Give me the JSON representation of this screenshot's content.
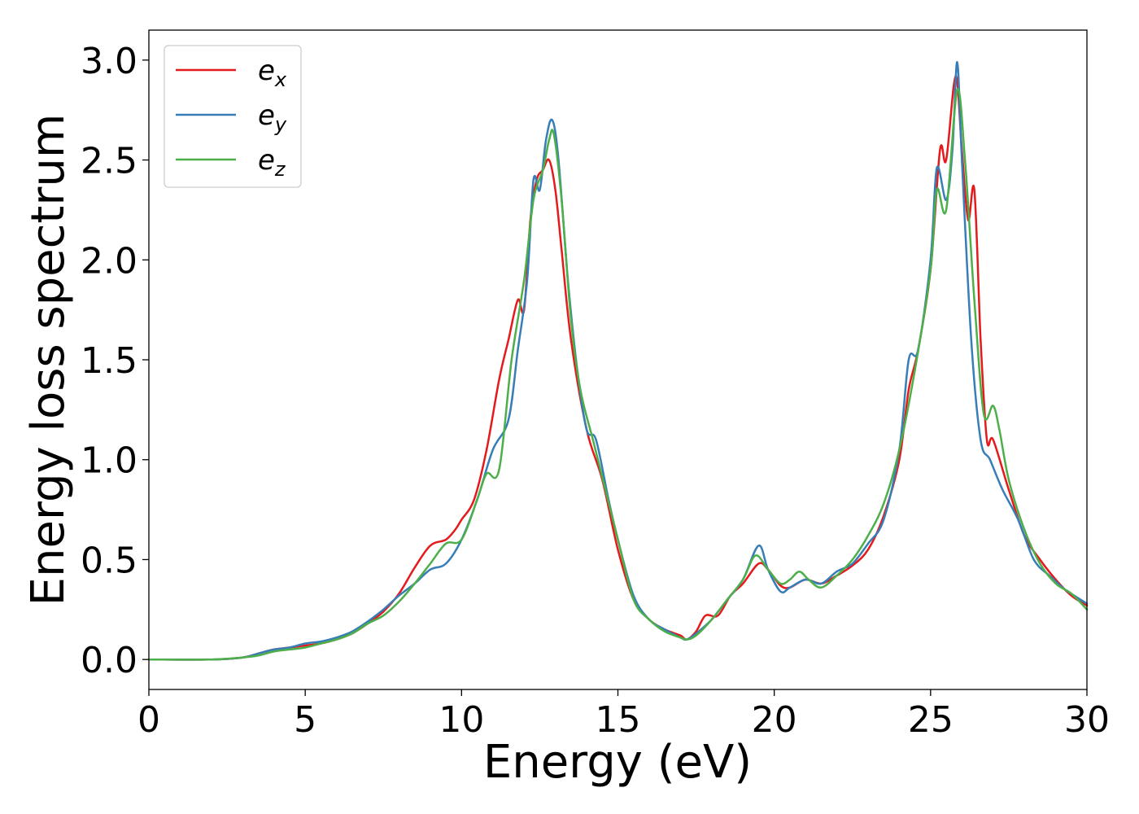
{
  "chart_data": {
    "type": "line",
    "xlabel": "Energy (eV)",
    "ylabel": "Energy loss spectrum",
    "xlim": [
      0,
      30
    ],
    "ylim": [
      -0.15,
      3.15
    ],
    "xticks": [
      0,
      5,
      10,
      15,
      20,
      25,
      30
    ],
    "xtick_labels": [
      "0",
      "5",
      "10",
      "15",
      "20",
      "25",
      "30"
    ],
    "yticks": [
      0.0,
      0.5,
      1.0,
      1.5,
      2.0,
      2.5,
      3.0
    ],
    "ytick_labels": [
      "0.0",
      "0.5",
      "1.0",
      "1.5",
      "2.0",
      "2.5",
      "3.0"
    ],
    "grid": false,
    "legend_position": "top-left",
    "series": [
      {
        "name": "e",
        "subscript": "x",
        "color": "#e41a1c",
        "x": [
          0,
          2,
          3,
          3.5,
          4,
          4.5,
          5,
          5.5,
          6,
          6.5,
          7,
          7.5,
          8,
          8.5,
          9,
          9.5,
          9.8,
          10,
          10.4,
          10.8,
          11.2,
          11.5,
          11.8,
          12,
          12.2,
          12.4,
          12.6,
          12.8,
          13,
          13.2,
          13.5,
          14,
          14.5,
          15,
          15.5,
          16,
          16.5,
          17,
          17.2,
          17.5,
          17.8,
          18.2,
          18.6,
          19,
          19.5,
          19.8,
          20.2,
          20.5,
          21,
          21.5,
          22,
          22.5,
          23,
          23.5,
          24,
          24.3,
          24.6,
          25,
          25.3,
          25.5,
          25.8,
          26,
          26.2,
          26.4,
          26.6,
          26.8,
          27,
          27.5,
          28,
          28.5,
          29,
          29.5,
          30
        ],
        "y": [
          0.0,
          0.0,
          0.01,
          0.03,
          0.05,
          0.06,
          0.07,
          0.08,
          0.1,
          0.13,
          0.18,
          0.24,
          0.33,
          0.46,
          0.57,
          0.6,
          0.65,
          0.7,
          0.8,
          1.05,
          1.4,
          1.6,
          1.8,
          1.75,
          2.2,
          2.4,
          2.45,
          2.5,
          2.35,
          2.05,
          1.6,
          1.15,
          0.9,
          0.55,
          0.3,
          0.2,
          0.15,
          0.12,
          0.1,
          0.14,
          0.22,
          0.22,
          0.32,
          0.38,
          0.48,
          0.45,
          0.37,
          0.36,
          0.4,
          0.38,
          0.42,
          0.47,
          0.55,
          0.72,
          1.0,
          1.35,
          1.55,
          1.95,
          2.55,
          2.5,
          2.92,
          2.55,
          2.2,
          2.35,
          1.6,
          1.1,
          1.1,
          0.85,
          0.62,
          0.5,
          0.4,
          0.32,
          0.27
        ]
      },
      {
        "name": "e",
        "subscript": "y",
        "color": "#377eb8",
        "x": [
          0,
          2,
          3,
          3.5,
          4,
          4.5,
          5,
          5.5,
          6,
          6.5,
          7,
          7.5,
          8,
          8.5,
          9,
          9.5,
          10,
          10.5,
          11,
          11.5,
          11.8,
          12.1,
          12.3,
          12.5,
          12.7,
          12.9,
          13.1,
          13.4,
          13.7,
          14,
          14.3,
          14.7,
          15,
          15.5,
          16,
          16.5,
          17,
          17.2,
          17.5,
          18,
          18.5,
          19,
          19.5,
          19.8,
          20.2,
          20.5,
          21,
          21.5,
          22,
          22.5,
          23,
          23.5,
          24,
          24.3,
          24.6,
          25,
          25.2,
          25.5,
          25.7,
          25.85,
          26,
          26.3,
          26.6,
          26.9,
          27.3,
          27.8,
          28.3,
          28.8,
          29.3,
          30
        ],
        "y": [
          0.0,
          0.0,
          0.01,
          0.03,
          0.05,
          0.06,
          0.08,
          0.09,
          0.11,
          0.14,
          0.19,
          0.25,
          0.32,
          0.38,
          0.45,
          0.48,
          0.6,
          0.8,
          1.05,
          1.2,
          1.55,
          1.9,
          2.4,
          2.35,
          2.6,
          2.7,
          2.5,
          1.9,
          1.45,
          1.15,
          1.1,
          0.8,
          0.6,
          0.32,
          0.2,
          0.15,
          0.11,
          0.1,
          0.13,
          0.2,
          0.3,
          0.4,
          0.57,
          0.45,
          0.34,
          0.36,
          0.4,
          0.38,
          0.44,
          0.48,
          0.58,
          0.7,
          1.05,
          1.5,
          1.55,
          2.0,
          2.46,
          2.3,
          2.55,
          2.99,
          2.5,
          1.6,
          1.1,
          1.0,
          0.85,
          0.7,
          0.5,
          0.42,
          0.35,
          0.28
        ]
      },
      {
        "name": "e",
        "subscript": "z",
        "color": "#4daf4a",
        "x": [
          0,
          2,
          3,
          3.5,
          4,
          4.5,
          5,
          5.5,
          6,
          6.5,
          7,
          7.5,
          8,
          8.5,
          9,
          9.5,
          10,
          10.5,
          10.8,
          11.2,
          11.6,
          12,
          12.3,
          12.6,
          12.8,
          12.95,
          13.2,
          13.5,
          13.8,
          14.2,
          14.6,
          15,
          15.5,
          16,
          16.5,
          17,
          17.2,
          17.5,
          18,
          18.5,
          19,
          19.4,
          19.8,
          20.2,
          20.5,
          20.8,
          21.1,
          21.5,
          22,
          22.5,
          23,
          23.5,
          24,
          24.5,
          25,
          25.2,
          25.5,
          25.85,
          26.1,
          26.4,
          26.7,
          27,
          27.2,
          27.5,
          28,
          28.5,
          29,
          29.5,
          30
        ],
        "y": [
          0.0,
          0.0,
          0.01,
          0.02,
          0.04,
          0.05,
          0.06,
          0.08,
          0.1,
          0.13,
          0.18,
          0.22,
          0.29,
          0.38,
          0.48,
          0.58,
          0.6,
          0.8,
          0.93,
          0.95,
          1.5,
          1.9,
          2.3,
          2.45,
          2.6,
          2.63,
          2.3,
          1.7,
          1.35,
          1.1,
          0.85,
          0.6,
          0.3,
          0.2,
          0.14,
          0.11,
          0.1,
          0.12,
          0.2,
          0.3,
          0.4,
          0.52,
          0.45,
          0.38,
          0.4,
          0.44,
          0.4,
          0.36,
          0.42,
          0.5,
          0.62,
          0.78,
          1.05,
          1.45,
          1.95,
          2.35,
          2.25,
          2.85,
          2.5,
          1.8,
          1.23,
          1.27,
          1.15,
          0.9,
          0.65,
          0.48,
          0.38,
          0.33,
          0.25
        ]
      }
    ]
  }
}
